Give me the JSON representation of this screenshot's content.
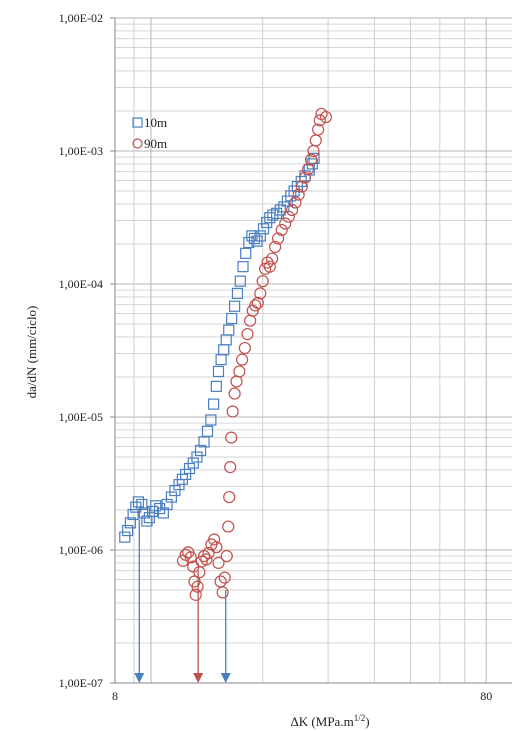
{
  "chart_data": {
    "type": "scatter",
    "xlabel": "ΔK (MPa.m",
    "xlabel_sup": "1/2",
    "xlabel_end": ")",
    "ylabel": "da/dN (mm/ciclo)",
    "x_scale": "log",
    "y_scale": "log",
    "xlim": [
      8,
      80
    ],
    "ylim": [
      1e-07,
      0.01
    ],
    "x_tick_labels": [
      {
        "value": 8,
        "label": "8"
      },
      {
        "value": 80,
        "label": "80"
      }
    ],
    "y_tick_labels": [
      {
        "value": 1e-07,
        "label": "1,00E-07"
      },
      {
        "value": 1e-06,
        "label": "1,00E-06"
      },
      {
        "value": 1e-05,
        "label": "1,00E-05"
      },
      {
        "value": 0.0001,
        "label": "1,00E-04"
      },
      {
        "value": 0.001,
        "label": "1,00E-03"
      },
      {
        "value": 0.01,
        "label": "1,00E-02"
      }
    ],
    "grid": true,
    "legend_position": "top-left",
    "series": [
      {
        "name": "10m",
        "marker": "square",
        "color": "#4a7fc1",
        "points": [
          [
            8.5,
            1.25e-06
          ],
          [
            8.65,
            1.4e-06
          ],
          [
            8.8,
            1.6e-06
          ],
          [
            8.95,
            1.85e-06
          ],
          [
            9.1,
            2.1e-06
          ],
          [
            9.25,
            2.3e-06
          ],
          [
            9.45,
            2.2e-06
          ],
          [
            9.6,
            1.9e-06
          ],
          [
            9.75,
            1.65e-06
          ],
          [
            9.9,
            1.75e-06
          ],
          [
            10.1,
            1.95e-06
          ],
          [
            10.3,
            2.15e-06
          ],
          [
            10.55,
            2.05e-06
          ],
          [
            10.8,
            1.9e-06
          ],
          [
            11.05,
            2.2e-06
          ],
          [
            11.35,
            2.5e-06
          ],
          [
            11.6,
            2.8e-06
          ],
          [
            11.9,
            3.1e-06
          ],
          [
            12.15,
            3.4e-06
          ],
          [
            12.4,
            3.7e-06
          ],
          [
            12.7,
            4.1e-06
          ],
          [
            13.0,
            4.5e-06
          ],
          [
            13.3,
            5e-06
          ],
          [
            13.6,
            5.6e-06
          ],
          [
            13.9,
            6.5e-06
          ],
          [
            14.2,
            7.8e-06
          ],
          [
            14.5,
            9.5e-06
          ],
          [
            14.75,
            1.25e-05
          ],
          [
            15.0,
            1.7e-05
          ],
          [
            15.2,
            2.2e-05
          ],
          [
            15.45,
            2.7e-05
          ],
          [
            15.7,
            3.2e-05
          ],
          [
            15.95,
            3.8e-05
          ],
          [
            16.2,
            4.5e-05
          ],
          [
            16.5,
            5.5e-05
          ],
          [
            16.8,
            6.8e-05
          ],
          [
            17.1,
            8.5e-05
          ],
          [
            17.4,
            0.000105
          ],
          [
            17.7,
            0.000135
          ],
          [
            18.0,
            0.00017
          ],
          [
            18.35,
            0.000205
          ],
          [
            18.7,
            0.00023
          ],
          [
            19.0,
            0.00022
          ],
          [
            19.3,
            0.00021
          ],
          [
            19.7,
            0.00023
          ],
          [
            20.1,
            0.00026
          ],
          [
            20.5,
            0.00029
          ],
          [
            20.9,
            0.000315
          ],
          [
            21.3,
            0.00033
          ],
          [
            21.8,
            0.00034
          ],
          [
            22.3,
            0.00036
          ],
          [
            22.8,
            0.00038
          ],
          [
            23.3,
            0.00042
          ],
          [
            23.8,
            0.00046
          ],
          [
            24.3,
            0.0005
          ],
          [
            24.8,
            0.00054
          ],
          [
            25.4,
            0.00059
          ],
          [
            26.0,
            0.00065
          ],
          [
            26.7,
            0.00072
          ],
          [
            27.2,
            0.0008
          ],
          [
            27.5,
            0.00088
          ]
        ]
      },
      {
        "name": "90m",
        "marker": "circle",
        "color": "#c0504d",
        "points": [
          [
            12.2,
            8.3e-07
          ],
          [
            12.4,
            9.2e-07
          ],
          [
            12.6,
            9.6e-07
          ],
          [
            12.8,
            8.8e-07
          ],
          [
            13.0,
            7.5e-07
          ],
          [
            13.1,
            5.8e-07
          ],
          [
            13.2,
            4.6e-07
          ],
          [
            13.35,
            5.3e-07
          ],
          [
            13.5,
            6.8e-07
          ],
          [
            13.7,
            8.2e-07
          ],
          [
            13.9,
            9e-07
          ],
          [
            14.1,
            8.5e-07
          ],
          [
            14.3,
            9.5e-07
          ],
          [
            14.55,
            1.1e-06
          ],
          [
            14.8,
            1.2e-06
          ],
          [
            15.0,
            1.05e-06
          ],
          [
            15.2,
            8e-07
          ],
          [
            15.4,
            5.8e-07
          ],
          [
            15.6,
            4.8e-07
          ],
          [
            15.8,
            6.2e-07
          ],
          [
            16.0,
            9e-07
          ],
          [
            16.15,
            1.5e-06
          ],
          [
            16.25,
            2.5e-06
          ],
          [
            16.35,
            4.2e-06
          ],
          [
            16.45,
            7e-06
          ],
          [
            16.6,
            1.1e-05
          ],
          [
            16.8,
            1.5e-05
          ],
          [
            17.0,
            1.85e-05
          ],
          [
            17.3,
            2.2e-05
          ],
          [
            17.6,
            2.7e-05
          ],
          [
            17.9,
            3.3e-05
          ],
          [
            18.2,
            4.2e-05
          ],
          [
            18.5,
            5.3e-05
          ],
          [
            18.8,
            6.3e-05
          ],
          [
            19.1,
            6.9e-05
          ],
          [
            19.4,
            7.2e-05
          ],
          [
            19.7,
            8.5e-05
          ],
          [
            20.0,
            0.000105
          ],
          [
            20.3,
            0.00013
          ],
          [
            20.6,
            0.000145
          ],
          [
            20.9,
            0.000135
          ],
          [
            21.2,
            0.000155
          ],
          [
            21.6,
            0.00019
          ],
          [
            22.0,
            0.00022
          ],
          [
            22.5,
            0.000255
          ],
          [
            23.0,
            0.000285
          ],
          [
            23.5,
            0.00032
          ],
          [
            24.0,
            0.00036
          ],
          [
            24.5,
            0.00041
          ],
          [
            25.0,
            0.00047
          ],
          [
            25.5,
            0.00054
          ],
          [
            26.0,
            0.00063
          ],
          [
            26.5,
            0.00073
          ],
          [
            27.0,
            0.00086
          ],
          [
            27.4,
            0.001
          ],
          [
            27.8,
            0.0012
          ],
          [
            28.2,
            0.00145
          ],
          [
            28.5,
            0.0017
          ],
          [
            28.8,
            0.0019
          ],
          [
            29.6,
            0.0018
          ]
        ]
      }
    ],
    "annotations": [
      {
        "type": "arrow",
        "x": 9.3,
        "from_y": 1.7e-06,
        "to_y": 1e-07,
        "color": "#4a7fc1"
      },
      {
        "type": "arrow",
        "x": 13.4,
        "from_y": 7e-07,
        "to_y": 1e-07,
        "color": "#c0504d"
      },
      {
        "type": "arrow",
        "x": 15.9,
        "from_y": 5e-07,
        "to_y": 1e-07,
        "color": "#4a7fc1"
      }
    ]
  }
}
